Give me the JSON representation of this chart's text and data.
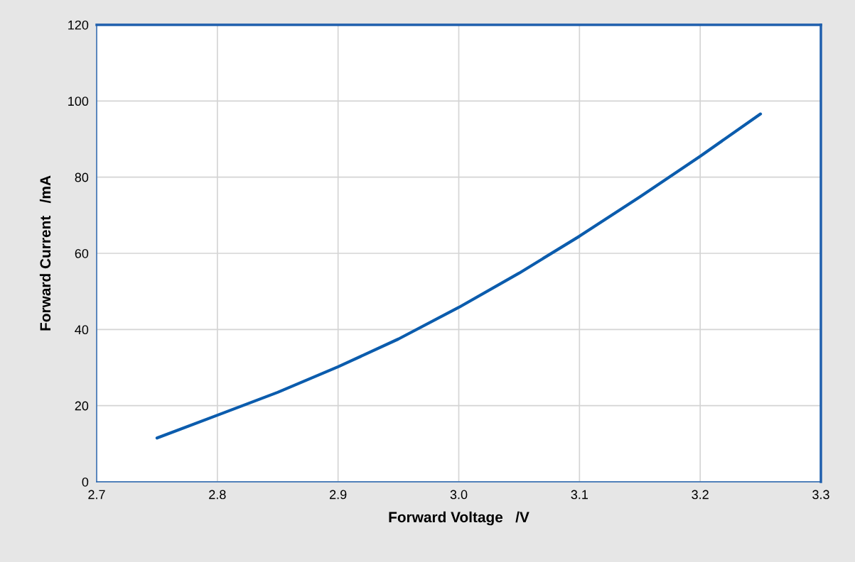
{
  "chart_data": {
    "type": "line",
    "xlabel": "Forward Voltage   /V",
    "ylabel": "Forward Current   /mA",
    "x": [
      2.75,
      2.8,
      2.85,
      2.9,
      2.95,
      3.0,
      3.05,
      3.1,
      3.15,
      3.2,
      3.25
    ],
    "series": [
      {
        "color": "#0b5cad",
        "values": [
          11.5,
          17.5,
          23.5,
          30.2,
          37.5,
          45.8,
          54.8,
          64.5,
          74.8,
          85.5,
          96.6
        ]
      }
    ],
    "xlim": [
      2.7,
      3.3
    ],
    "xticks": [
      {
        "value": 2.7,
        "label": "2.7"
      },
      {
        "value": 2.8,
        "label": "2.8"
      },
      {
        "value": 2.9,
        "label": "2.9"
      },
      {
        "value": 3.0,
        "label": "3.0"
      },
      {
        "value": 3.1,
        "label": "3.1"
      },
      {
        "value": 3.2,
        "label": "3.2"
      },
      {
        "value": 3.3,
        "label": "3.3"
      }
    ],
    "ylim": [
      0,
      120
    ],
    "yticks": [
      0,
      20,
      40,
      60,
      80,
      100,
      120
    ],
    "grid": true,
    "marker": "none",
    "line_style": "solid"
  }
}
